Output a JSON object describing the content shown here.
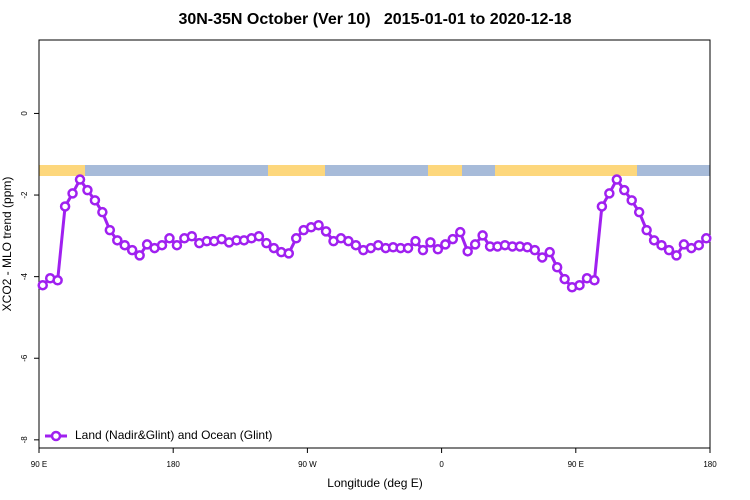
{
  "chart_data": {
    "type": "line",
    "title": "30N-35N October (Ver 10)   2015-01-01 to 2020-12-18",
    "xlabel": "Longitude (deg E)",
    "ylabel": "XCO2 - MLO trend (ppm)",
    "xlim": [
      90,
      540
    ],
    "ylim": [
      -8.2,
      1.8
    ],
    "xticks": [
      {
        "value": 90,
        "label": "90 E"
      },
      180,
      {
        "value": 270,
        "label": "90 W"
      },
      {
        "value": 360,
        "label": "0"
      },
      {
        "value": 450,
        "label": "90 E"
      },
      {
        "value": 540,
        "label": "180"
      }
    ],
    "yticks": [
      0,
      -2,
      -4,
      -6,
      -8
    ],
    "legend": "bottom-left",
    "x": [
      92.5,
      97.5,
      102.5,
      107.5,
      112.5,
      117.5,
      122.5,
      127.5,
      132.5,
      137.5,
      142.5,
      147.5,
      152.5,
      157.5,
      162.5,
      167.5,
      172.5,
      177.5,
      182.5,
      187.5,
      192.5,
      197.5,
      202.5,
      207.5,
      212.5,
      217.5,
      222.5,
      227.5,
      232.5,
      237.5,
      242.5,
      247.5,
      252.5,
      257.5,
      262.5,
      267.5,
      272.5,
      277.5,
      282.5,
      287.5,
      292.5,
      297.5,
      302.5,
      307.5,
      312.5,
      317.5,
      322.5,
      327.5,
      332.5,
      337.5,
      342.5,
      347.5,
      352.5,
      357.5,
      362.5,
      367.5,
      372.5,
      377.5,
      382.5,
      387.5,
      392.5,
      397.5,
      402.5,
      407.5,
      412.5,
      417.5,
      422.5,
      427.5,
      432.5,
      437.5,
      442.5,
      447.5,
      452.5,
      457.5,
      462.5,
      467.5,
      472.5,
      477.5,
      482.5,
      487.5,
      492.5,
      497.5,
      502.5,
      507.5,
      512.5,
      517.5,
      522.5,
      527.5,
      532.5,
      537.5
    ],
    "series": [
      {
        "name": "Land (Nadir&Glint) and Ocean (Glint)",
        "color": "#a020f0",
        "values": [
          -4.21,
          -4.04,
          -4.09,
          -2.28,
          -1.96,
          -1.62,
          -1.88,
          -2.13,
          -2.42,
          -2.86,
          -3.11,
          -3.23,
          -3.35,
          -3.48,
          -3.21,
          -3.3,
          -3.23,
          -3.06,
          -3.23,
          -3.06,
          -3.01,
          -3.18,
          -3.13,
          -3.13,
          -3.08,
          -3.16,
          -3.11,
          -3.11,
          -3.06,
          -3.01,
          -3.18,
          -3.3,
          -3.4,
          -3.43,
          -3.06,
          -2.86,
          -2.79,
          -2.74,
          -2.89,
          -3.13,
          -3.06,
          -3.13,
          -3.23,
          -3.35,
          -3.3,
          -3.23,
          -3.3,
          -3.28,
          -3.3,
          -3.3,
          -3.13,
          -3.35,
          -3.16,
          -3.33,
          -3.21,
          -3.08,
          -2.91,
          -3.38,
          -3.21,
          -2.99,
          -3.26,
          -3.26,
          -3.23,
          -3.26,
          -3.26,
          -3.28,
          -3.35,
          -3.53,
          -3.4,
          -3.77,
          -4.06,
          -4.26,
          -4.21,
          -4.04,
          -4.09,
          -2.28,
          -1.96,
          -1.62,
          -1.88,
          -2.13,
          -2.42,
          -2.86,
          -3.11,
          -3.23,
          -3.35,
          -3.48,
          -3.21,
          -3.3,
          -3.23,
          -3.06
        ]
      }
    ]
  }
}
